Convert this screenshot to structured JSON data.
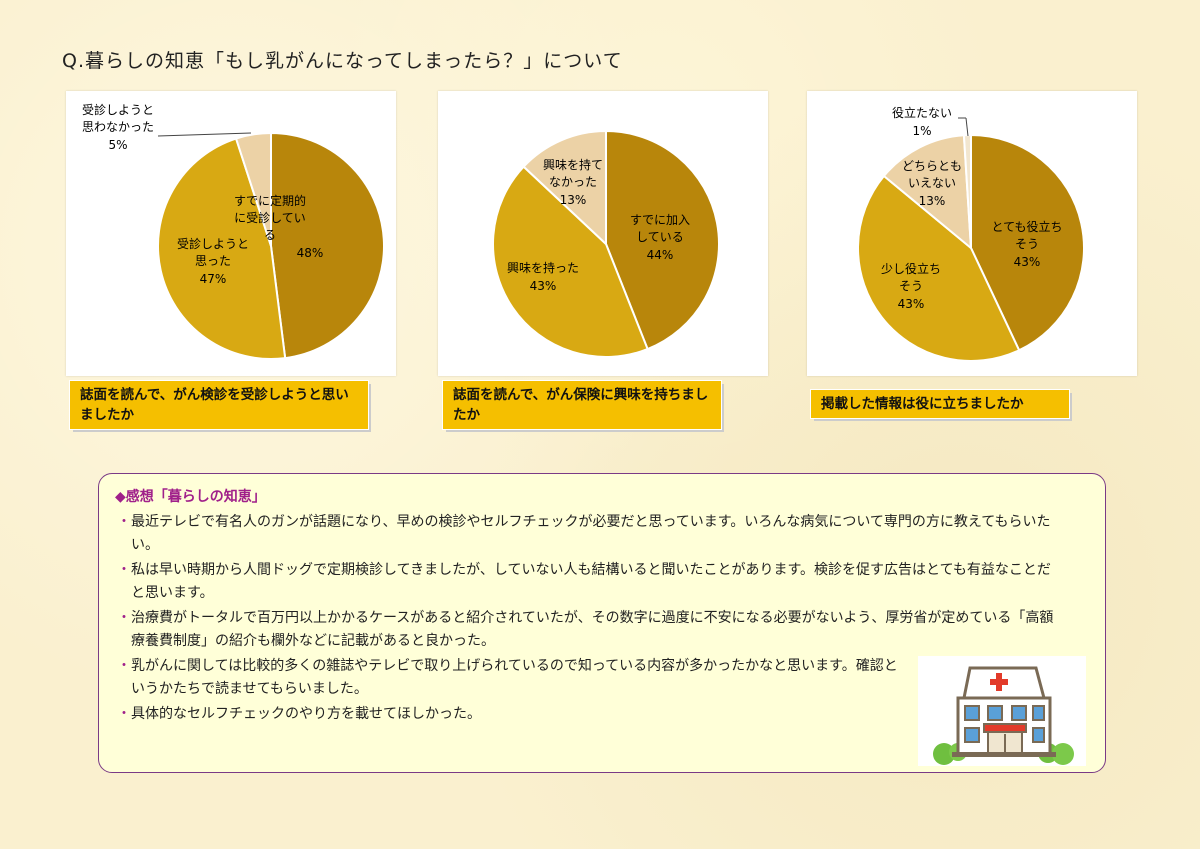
{
  "title": "Q.暮らしの知恵「もし乳がんになってしまったら？」について",
  "chart_data": [
    {
      "type": "pie",
      "caption": "誌面を読んで、がん検診を受診しようと思いましたか",
      "slices": [
        {
          "label": "すでに定期的に受診している",
          "value": 48,
          "color": "#b8860b"
        },
        {
          "label": "受診しようと思った",
          "value": 47,
          "color": "#d8a913"
        },
        {
          "label": "受診しようと思わなかった",
          "value": 5,
          "color": "#ecd2a6"
        }
      ]
    },
    {
      "type": "pie",
      "caption": "誌面を読んで、がん保険に興味を持ちましたか",
      "slices": [
        {
          "label": "すでに加入している",
          "value": 44,
          "color": "#b8860b"
        },
        {
          "label": "興味を持った",
          "value": 43,
          "color": "#d8a913"
        },
        {
          "label": "興味を持てなかった",
          "value": 13,
          "color": "#ecd2a6"
        }
      ]
    },
    {
      "type": "pie",
      "caption": "掲載した情報は役に立ちましたか",
      "slices": [
        {
          "label": "とても役立ちそう",
          "value": 43,
          "color": "#b8860b"
        },
        {
          "label": "少し役立ちそう",
          "value": 43,
          "color": "#d8a913"
        },
        {
          "label": "どちらともいえない",
          "value": 13,
          "color": "#ecd2a6"
        },
        {
          "label": "役立たない",
          "value": 1,
          "color": "#f2e6cf"
        }
      ]
    }
  ],
  "comments": {
    "heading": "◆感想「暮らしの知恵」",
    "items": [
      "最近テレビで有名人のガンが話題になり、早めの検診やセルフチェックが必要だと思っています。いろんな病気について専門の方に教えてもらいたい。",
      "私は早い時期から人間ドッグで定期検診してきましたが、していない人も結構いると聞いたことがあります。検診を促す広告はとても有益なことだと思います。",
      "治療費がトータルで百万円以上かかるケースがあると紹介されていたが、その数字に過度に不安になる必要がないよう、厚労省が定めている「高額療養費制度」の紹介も欄外などに記載があると良かった。",
      "乳がんに関しては比較的多くの雑誌やテレビで取り上げられているので知っている内容が多かったかなと思います。確認というかたちで読ませてもらいました。",
      "具体的なセルフチェックのやり方を載せてほしかった。"
    ],
    "bullet": "・"
  }
}
